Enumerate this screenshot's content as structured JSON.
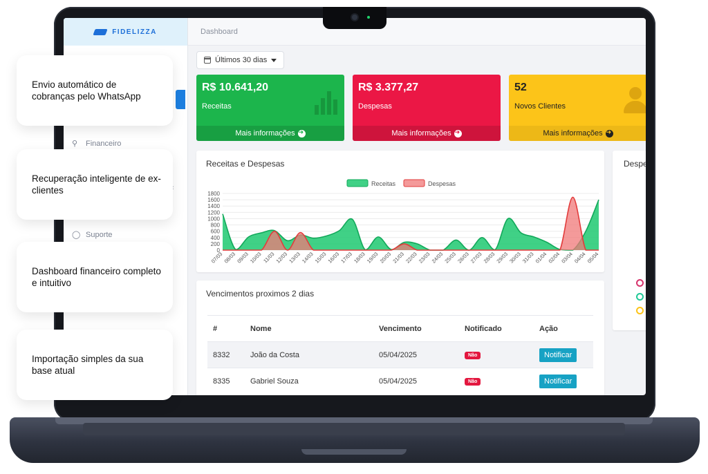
{
  "app": {
    "brand_name": "FIDELIZZA"
  },
  "sidebar": {
    "items": [
      {
        "label": "Financeiro",
        "icon": "search-icon"
      },
      {
        "label": "Suporte",
        "icon": "headset-icon"
      }
    ]
  },
  "header": {
    "breadcrumb": "Dashboard"
  },
  "filter": {
    "label": "Últimos 30 dias"
  },
  "cards": [
    {
      "value": "R$ 10.641,20",
      "label": "Receitas",
      "more": "Mais informações",
      "color": "#1cb54c"
    },
    {
      "value": "R$ 3.377,27",
      "label": "Despesas",
      "more": "Mais informações",
      "color": "#eb1745"
    },
    {
      "value": "52",
      "label": "Novos Clientes",
      "more": "Mais informações",
      "color": "#fcc419"
    }
  ],
  "chart_data": {
    "type": "area",
    "title": "Receitas e Despesas",
    "categories": [
      "07/03",
      "08/03",
      "09/03",
      "10/03",
      "11/03",
      "12/03",
      "13/03",
      "14/03",
      "15/03",
      "16/03",
      "17/03",
      "18/03",
      "19/03",
      "20/03",
      "21/03",
      "22/03",
      "23/03",
      "24/03",
      "25/03",
      "26/03",
      "27/03",
      "28/03",
      "29/03",
      "30/03",
      "31/03",
      "01/04",
      "02/04",
      "03/04",
      "04/04",
      "05/04"
    ],
    "series": [
      {
        "name": "Receitas",
        "color": "#1ec971",
        "values": [
          1150,
          20,
          420,
          550,
          620,
          300,
          480,
          380,
          450,
          620,
          980,
          10,
          420,
          20,
          250,
          200,
          0,
          0,
          320,
          0,
          400,
          10,
          1000,
          550,
          420,
          250,
          20,
          0,
          600,
          1600
        ]
      },
      {
        "name": "Despesas",
        "color": "#f08a8a",
        "values": [
          0,
          0,
          0,
          0,
          600,
          0,
          560,
          0,
          0,
          0,
          0,
          0,
          0,
          0,
          200,
          0,
          0,
          0,
          0,
          0,
          0,
          0,
          0,
          0,
          0,
          0,
          0,
          1680,
          0,
          0
        ]
      }
    ],
    "ylim": [
      0,
      1800
    ],
    "yticks": [
      0,
      200,
      400,
      600,
      800,
      1000,
      1200,
      1400,
      1600,
      1800
    ],
    "legend": "top"
  },
  "right_panel": {
    "title": "Despe"
  },
  "table": {
    "title": "Vencimentos proximos 2 dias",
    "headers": [
      "#",
      "Nome",
      "Vencimento",
      "Notificado",
      "Ação"
    ],
    "rows": [
      {
        "id": "8332",
        "name": "João da Costa",
        "due": "05/04/2025",
        "notified": "Não",
        "action": "Notificar"
      },
      {
        "id": "8335",
        "name": "Gabriel Souza",
        "due": "05/04/2025",
        "notified": "Não",
        "action": "Notificar"
      }
    ]
  },
  "features": [
    "Envio automático de cobranças pelo WhatsApp",
    "Recuperação inteligente de ex-clientes",
    "Dashboard financeiro completo e intuitivo",
    "Importação simples da sua base atual"
  ]
}
